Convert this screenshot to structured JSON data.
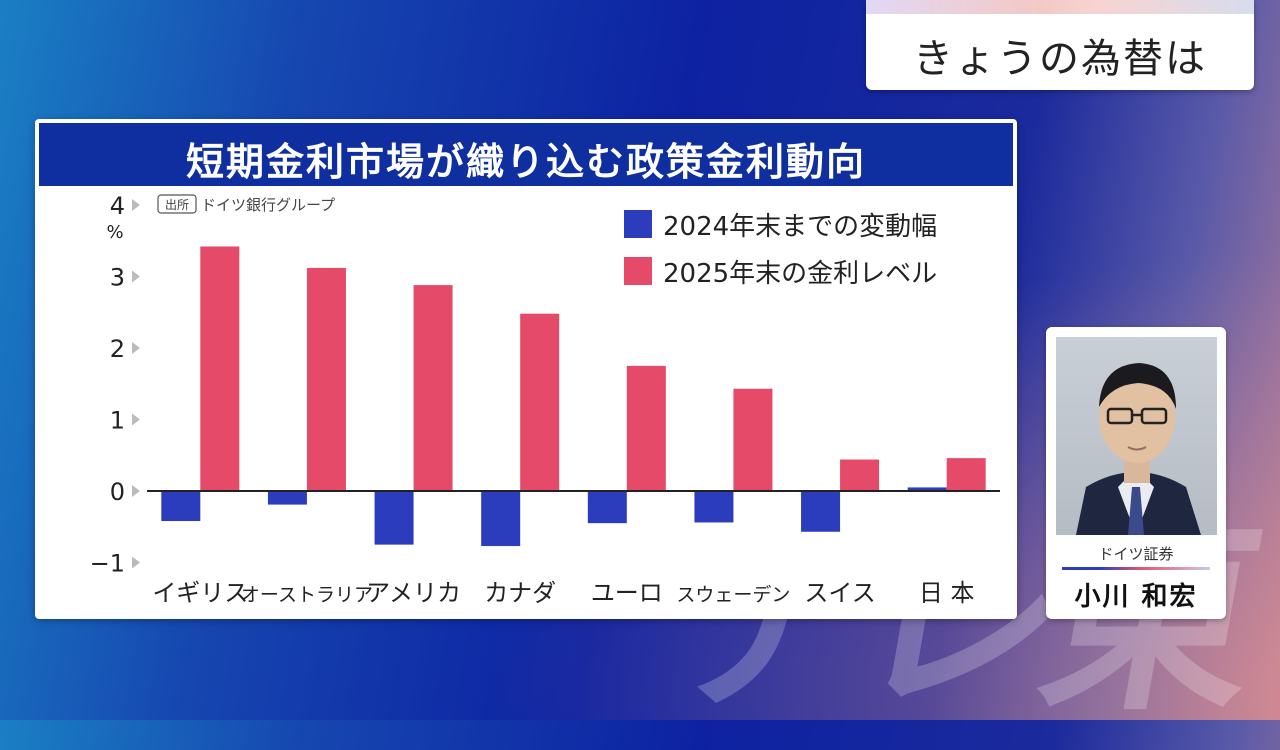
{
  "header": {
    "title": "きょうの為替は"
  },
  "chart_data": {
    "type": "bar",
    "title": "短期金利市場が織り込む政策金利動向",
    "source_tag": "出所",
    "source": "ドイツ銀行グループ",
    "ylabel": "%",
    "ylim": [
      -1,
      4
    ],
    "yticks": [
      "4",
      "3",
      "2",
      "1",
      "0",
      "−1"
    ],
    "yticks_values": [
      4,
      3,
      2,
      1,
      0,
      -1
    ],
    "legend_position": "top-right",
    "categories": [
      "イギリス",
      "オーストラリア",
      "アメリカ",
      "カナダ",
      "ユーロ",
      "スウェーデン",
      "スイス",
      "日 本"
    ],
    "series": [
      {
        "name": "2024年末までの変動幅",
        "color": "#2b3dbd",
        "values": [
          -0.42,
          -0.19,
          -0.75,
          -0.77,
          -0.45,
          -0.44,
          -0.57,
          0.05
        ]
      },
      {
        "name": "2025年末の金利レベル",
        "color": "#e54a68",
        "values": [
          3.42,
          3.12,
          2.88,
          2.48,
          1.75,
          1.43,
          0.44,
          0.46
        ]
      }
    ]
  },
  "person": {
    "company": "ドイツ証券",
    "name": "小川 和宏"
  },
  "watermark": "テレ東"
}
